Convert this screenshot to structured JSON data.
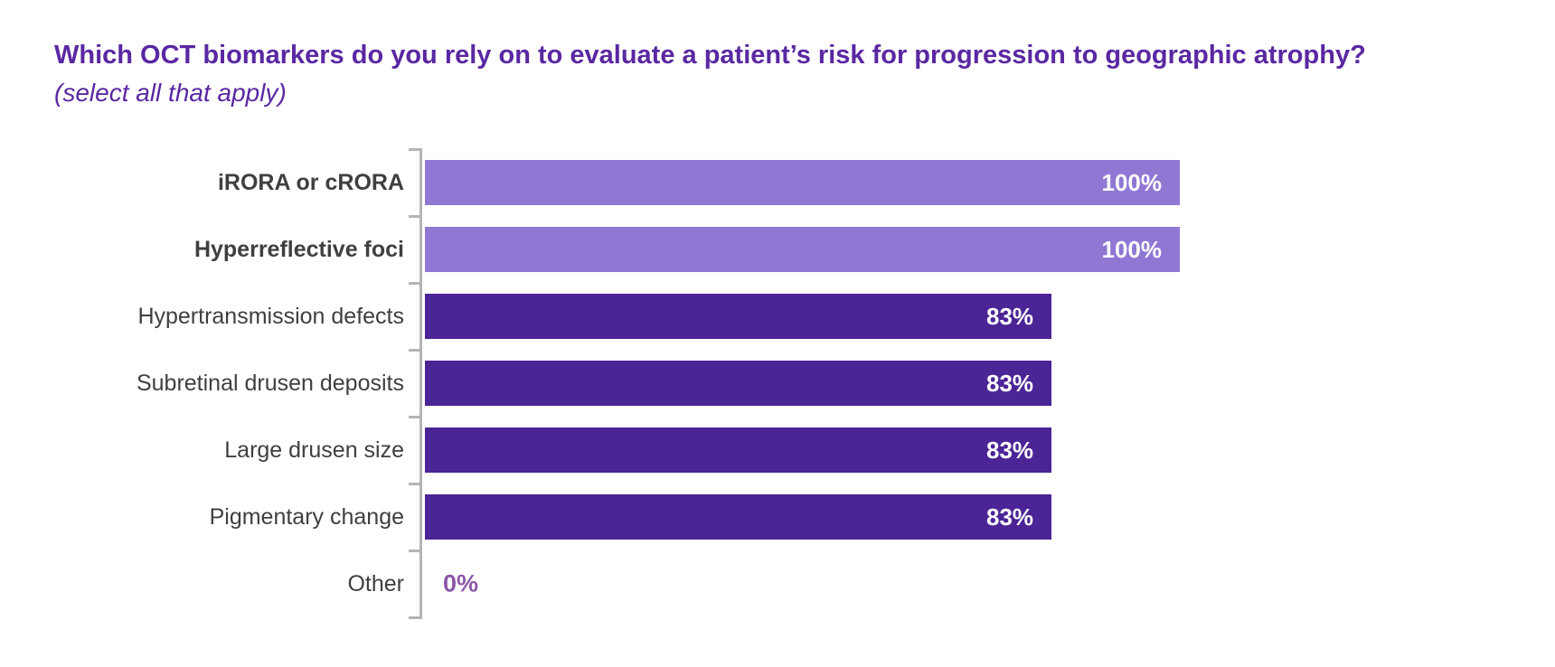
{
  "page": {
    "title": "Which OCT biomarkers do you rely on to evaluate a patient’s risk for progression to geographic atrophy?",
    "subtitle": "(select all that apply)"
  },
  "colors": {
    "title_text": "#5a28a2",
    "bar_light": "#9077d4",
    "bar_dark": "#4b2496",
    "value_text": "#ffffff",
    "zero_text": "#8a57a8",
    "axis": "#b5b5b5",
    "category_text": "#3f3f3f",
    "background": "#ffffff"
  },
  "chart_data": {
    "type": "bar",
    "orientation": "horizontal",
    "title": "Which OCT biomarkers do you rely on to evaluate a patient’s risk for progression to geographic atrophy?",
    "subtitle": "(select all that apply)",
    "categories": [
      "iRORA or cRORA",
      "Hyperreflective foci",
      "Hypertransmission defects",
      "Subretinal drusen deposits",
      "Large drusen size",
      "Pigmentary change",
      "Other"
    ],
    "values": [
      100,
      100,
      83,
      83,
      83,
      83,
      0
    ],
    "value_labels": [
      "100%",
      "100%",
      "83%",
      "83%",
      "83%",
      "83%",
      "0%"
    ],
    "xlim": [
      0,
      100
    ],
    "grid": false,
    "legend": false,
    "value_label_position": "inside-end",
    "bar_color_keys": [
      "light",
      "light",
      "dark",
      "dark",
      "dark",
      "dark",
      "none"
    ],
    "category_bold": [
      true,
      true,
      false,
      false,
      false,
      false,
      false
    ]
  }
}
